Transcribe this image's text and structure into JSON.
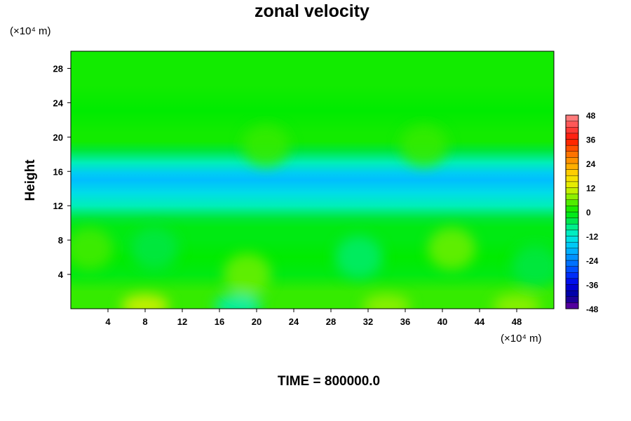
{
  "chart_data": {
    "type": "heatmap",
    "title": "zonal velocity",
    "ylabel": "Height",
    "x_unit": "(×10⁴ m)",
    "y_unit": "(×10⁴ m)",
    "footer": "TIME = 800000.0",
    "xlim": [
      0,
      52
    ],
    "ylim": [
      0,
      30
    ],
    "x_ticks": [
      4,
      8,
      12,
      16,
      20,
      24,
      28,
      32,
      36,
      40,
      44,
      48
    ],
    "y_ticks": [
      4,
      8,
      12,
      16,
      20,
      24,
      28
    ],
    "colorbar": {
      "min": -48,
      "max": 48,
      "step": 3,
      "ticks": [
        48,
        36,
        24,
        12,
        0,
        -12,
        -24,
        -36,
        -48
      ]
    },
    "height_profile": {
      "heights": [
        0,
        2,
        4,
        6,
        8,
        9.5,
        10.5,
        12,
        13.5,
        15,
        15.8,
        17,
        18.5,
        19.5,
        20.5,
        23,
        26,
        30
      ],
      "values": [
        3,
        3,
        -1,
        0,
        -1,
        -1,
        -3,
        -10,
        -14,
        -18,
        -16,
        -10,
        -3,
        1,
        1,
        0,
        1,
        1
      ]
    },
    "anomalies": [
      {
        "x": 8,
        "y": 0,
        "value": 12
      },
      {
        "x": 18,
        "y": 0,
        "value": -10
      },
      {
        "x": 34,
        "y": 0,
        "value": 8
      },
      {
        "x": 48,
        "y": 0,
        "value": 8
      },
      {
        "x": 2,
        "y": 7,
        "value": 4
      },
      {
        "x": 9,
        "y": 7,
        "value": -4
      },
      {
        "x": 19,
        "y": 4,
        "value": 6
      },
      {
        "x": 31,
        "y": 6,
        "value": -6
      },
      {
        "x": 41,
        "y": 7,
        "value": 6
      },
      {
        "x": 50,
        "y": 5,
        "value": -4
      },
      {
        "x": 21,
        "y": 19,
        "value": 3
      },
      {
        "x": 38,
        "y": 19,
        "value": 3
      }
    ]
  }
}
